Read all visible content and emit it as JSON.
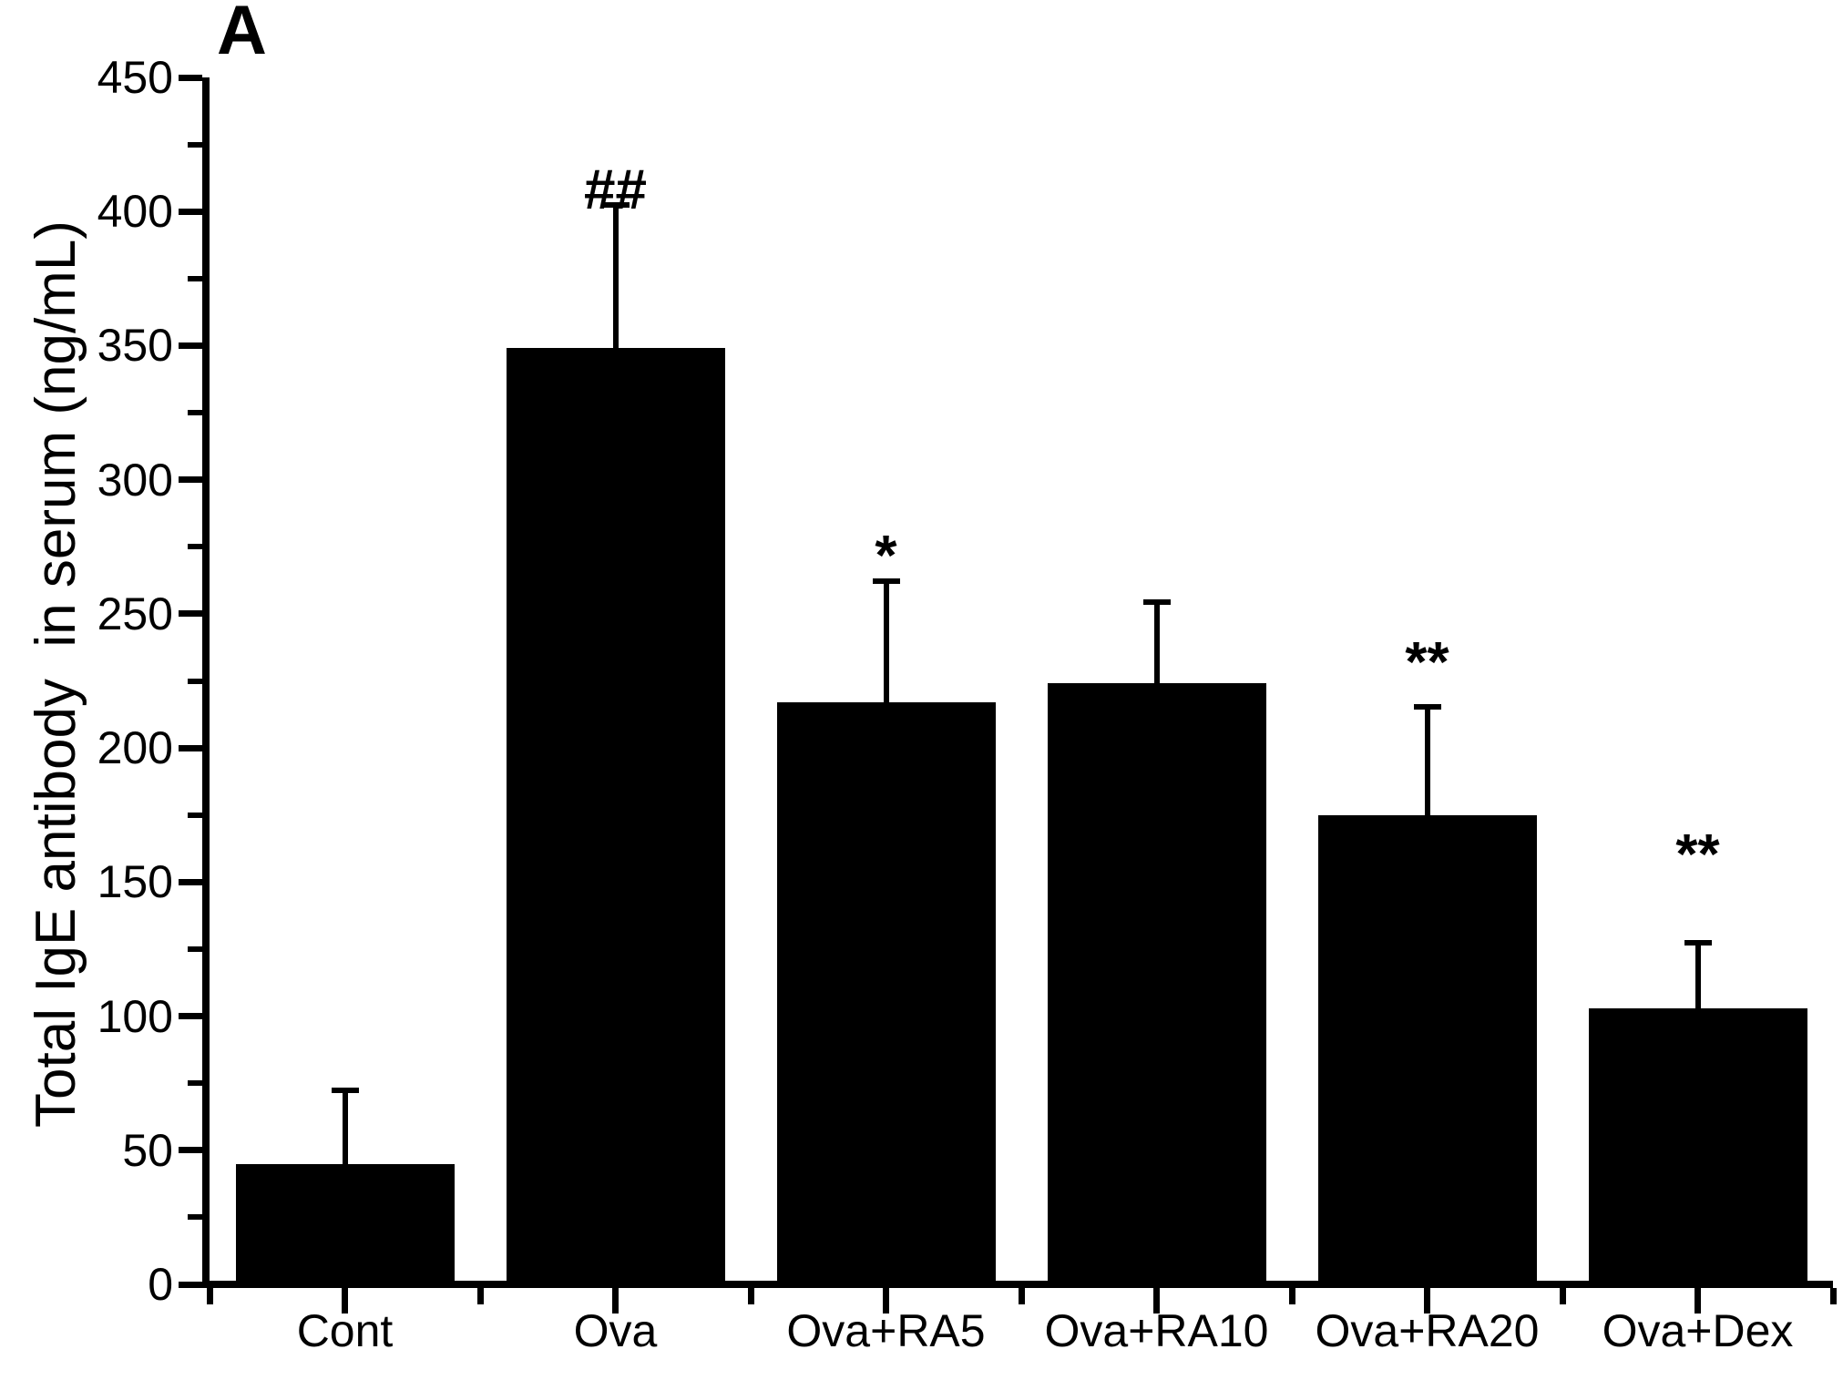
{
  "panel_label": "A",
  "y_axis": {
    "title": "Total IgE antibody  in serum (ng/mL)",
    "min": 0,
    "max": 450,
    "major_step": 50,
    "minor_step": 25,
    "tick_labels": [
      "0",
      "50",
      "100",
      "150",
      "200",
      "250",
      "300",
      "350",
      "400",
      "450"
    ]
  },
  "x_axis": {
    "categories": [
      "Cont",
      "Ova",
      "Ova+RA5",
      "Ova+RA10",
      "Ova+RA20",
      "Ova+Dex"
    ]
  },
  "chart_data": {
    "type": "bar",
    "title": "",
    "xlabel": "",
    "ylabel": "Total IgE antibody  in serum (ng/mL)",
    "categories": [
      "Cont",
      "Ova",
      "Ova+RA5",
      "Ova+RA10",
      "Ova+RA20",
      "Ova+Dex"
    ],
    "values": [
      45,
      349,
      217,
      224,
      175,
      103
    ],
    "error_sd": [
      28,
      54,
      46,
      31,
      41,
      25
    ],
    "error_tops": [
      73,
      403,
      263,
      255,
      216,
      128
    ],
    "annotations": [
      "",
      "##",
      "*",
      "",
      "**",
      "**"
    ],
    "ylim": [
      0,
      450
    ],
    "bar_color": "#000000",
    "background_color": "#ffffff",
    "grid": "off",
    "legend": "none"
  }
}
